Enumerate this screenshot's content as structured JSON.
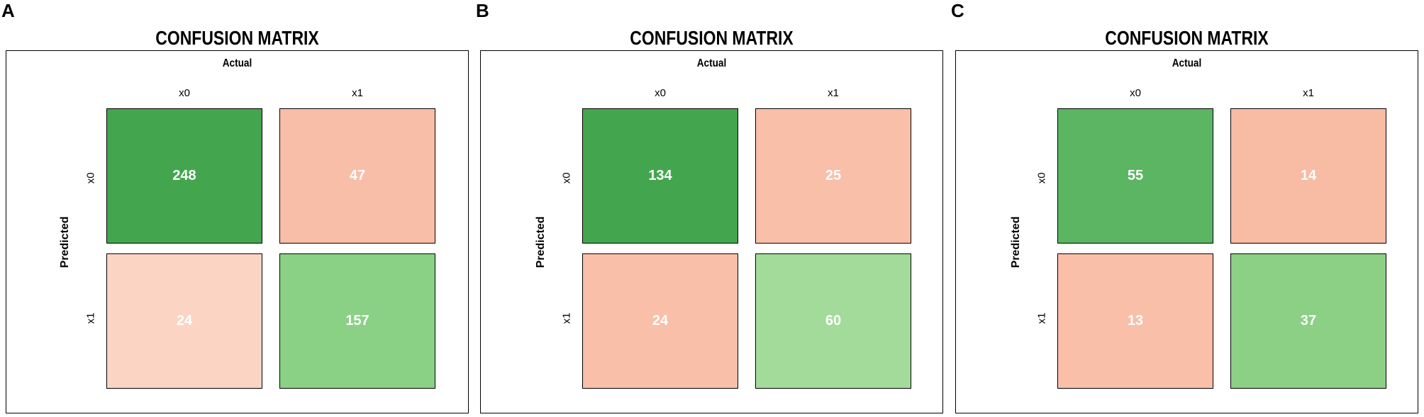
{
  "panels": [
    {
      "letter": "A",
      "title": "CONFUSION MATRIX",
      "col_header": "Actual",
      "row_header": "Predicted",
      "col_labels": [
        "x0",
        "x1"
      ],
      "row_labels": [
        "x0",
        "x1"
      ],
      "cells": [
        {
          "value": "248",
          "color": "#43a64f"
        },
        {
          "value": "47",
          "color": "#f8bea8"
        },
        {
          "value": "24",
          "color": "#fbd4c4"
        },
        {
          "value": "157",
          "color": "#8ad085"
        }
      ]
    },
    {
      "letter": "B",
      "title": "CONFUSION MATRIX",
      "col_header": "Actual",
      "row_header": "Predicted",
      "col_labels": [
        "x0",
        "x1"
      ],
      "row_labels": [
        "x0",
        "x1"
      ],
      "cells": [
        {
          "value": "134",
          "color": "#43a64f"
        },
        {
          "value": "25",
          "color": "#f9bfa9"
        },
        {
          "value": "24",
          "color": "#f9bfa9"
        },
        {
          "value": "60",
          "color": "#a3db9a"
        }
      ]
    },
    {
      "letter": "C",
      "title": "CONFUSION MATRIX",
      "col_header": "Actual",
      "row_header": "Predicted",
      "col_labels": [
        "x0",
        "x1"
      ],
      "row_labels": [
        "x0",
        "x1"
      ],
      "cells": [
        {
          "value": "55",
          "color": "#5cb562"
        },
        {
          "value": "14",
          "color": "#f8bba4"
        },
        {
          "value": "13",
          "color": "#f9bfa9"
        },
        {
          "value": "37",
          "color": "#8bd085"
        }
      ]
    }
  ],
  "chart_data": [
    {
      "type": "heatmap",
      "title": "CONFUSION MATRIX",
      "xlabel": "Actual",
      "ylabel": "Predicted",
      "x": [
        "x0",
        "x1"
      ],
      "y": [
        "x0",
        "x1"
      ],
      "values": [
        [
          248,
          47
        ],
        [
          24,
          157
        ]
      ]
    },
    {
      "type": "heatmap",
      "title": "CONFUSION MATRIX",
      "xlabel": "Actual",
      "ylabel": "Predicted",
      "x": [
        "x0",
        "x1"
      ],
      "y": [
        "x0",
        "x1"
      ],
      "values": [
        [
          134,
          25
        ],
        [
          24,
          60
        ]
      ]
    },
    {
      "type": "heatmap",
      "title": "CONFUSION MATRIX",
      "xlabel": "Actual",
      "ylabel": "Predicted",
      "x": [
        "x0",
        "x1"
      ],
      "y": [
        "x0",
        "x1"
      ],
      "values": [
        [
          55,
          14
        ],
        [
          13,
          37
        ]
      ]
    }
  ]
}
